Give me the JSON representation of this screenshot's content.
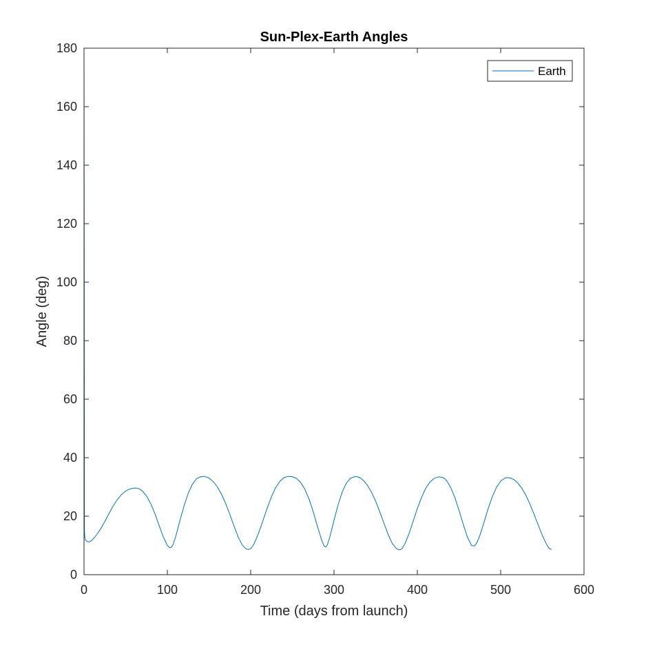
{
  "chart_data": {
    "type": "line",
    "title": "Sun-Plex-Earth Angles",
    "xlabel": "Time (days from launch)",
    "ylabel": "Angle (deg)",
    "xlim": [
      0,
      600
    ],
    "ylim": [
      0,
      180
    ],
    "xticks": [
      0,
      100,
      200,
      300,
      400,
      500,
      600
    ],
    "yticks": [
      0,
      20,
      40,
      60,
      80,
      100,
      120,
      140,
      160,
      180
    ],
    "grid": false,
    "legend_position": "top-right",
    "series": [
      {
        "name": "Earth",
        "color": "#0072BD",
        "x": [
          0,
          0.3,
          0.5,
          1,
          2,
          4,
          6,
          8,
          10,
          13,
          16,
          20,
          25,
          30,
          35,
          40,
          45,
          50,
          55,
          60,
          63,
          66,
          70,
          75,
          80,
          85,
          90,
          95,
          100,
          103,
          105,
          107,
          110,
          115,
          120,
          125,
          130,
          135,
          140,
          144,
          148,
          152,
          156,
          160,
          165,
          170,
          175,
          180,
          185,
          190,
          194,
          197,
          200,
          203,
          206,
          210,
          215,
          220,
          225,
          230,
          235,
          240,
          245,
          250,
          255,
          260,
          265,
          270,
          275,
          280,
          285,
          288,
          290,
          292,
          295,
          300,
          305,
          310,
          315,
          320,
          325,
          328,
          332,
          336,
          340,
          345,
          350,
          355,
          360,
          365,
          370,
          375,
          378,
          380,
          382,
          385,
          390,
          395,
          400,
          405,
          410,
          415,
          420,
          425,
          430,
          433,
          436,
          440,
          445,
          450,
          455,
          460,
          465,
          468,
          470,
          472,
          475,
          480,
          485,
          490,
          495,
          500,
          505,
          508,
          512,
          516,
          520,
          525,
          530,
          535,
          540,
          545,
          550,
          555,
          558,
          561
        ],
        "values": [
          180,
          100,
          15,
          12.5,
          11.8,
          11.3,
          11.2,
          11.4,
          11.9,
          12.9,
          14.0,
          15.7,
          18.2,
          20.9,
          23.5,
          25.7,
          27.4,
          28.6,
          29.3,
          29.6,
          29.6,
          29.4,
          28.6,
          26.9,
          24.3,
          20.9,
          16.9,
          13.0,
          10.0,
          9.2,
          9.4,
          10.4,
          13.0,
          18.4,
          23.5,
          27.8,
          30.9,
          32.8,
          33.5,
          33.6,
          33.3,
          32.6,
          31.5,
          30.0,
          27.5,
          24.3,
          20.6,
          16.6,
          12.9,
          10.1,
          8.9,
          8.6,
          8.9,
          10.0,
          11.8,
          14.6,
          18.7,
          22.9,
          26.7,
          29.8,
          31.9,
          33.2,
          33.6,
          33.5,
          32.9,
          31.5,
          29.2,
          25.9,
          21.6,
          16.6,
          12.0,
          9.8,
          9.5,
          10.2,
          12.9,
          18.6,
          24.0,
          28.4,
          31.4,
          33.0,
          33.5,
          33.5,
          33.0,
          32.0,
          30.6,
          28.2,
          25.1,
          21.4,
          17.5,
          13.7,
          10.6,
          8.9,
          8.5,
          8.6,
          9.1,
          10.5,
          14.0,
          18.3,
          22.6,
          26.4,
          29.5,
          31.6,
          32.9,
          33.4,
          33.3,
          32.8,
          31.8,
          29.8,
          26.4,
          22.0,
          17.3,
          12.9,
          10.0,
          9.8,
          10.3,
          11.3,
          13.4,
          17.9,
          22.6,
          26.7,
          29.9,
          32.0,
          33.0,
          33.2,
          33.0,
          32.5,
          31.5,
          29.7,
          27.3,
          24.2,
          20.7,
          17.0,
          13.4,
          10.4,
          9.0,
          8.6
        ]
      }
    ]
  }
}
